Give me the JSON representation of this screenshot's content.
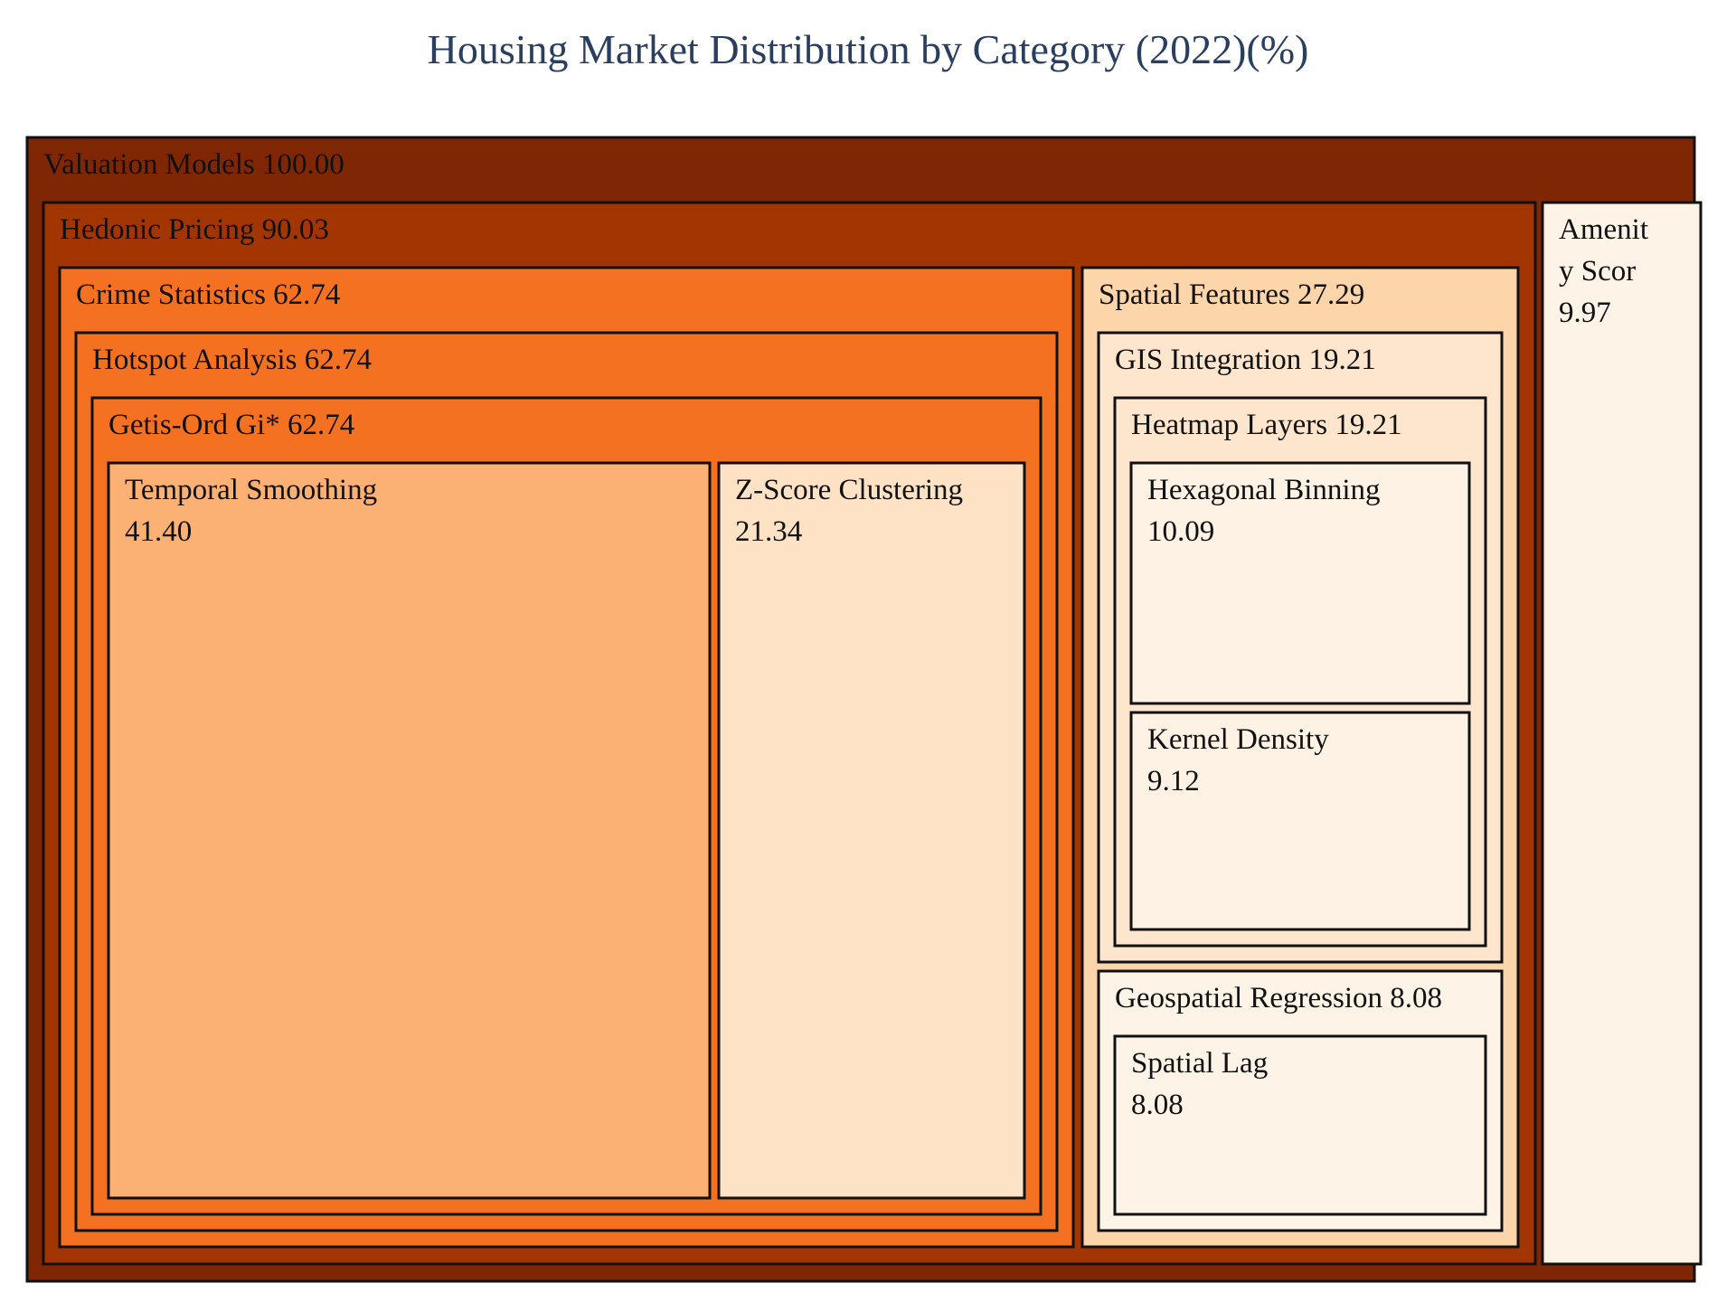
{
  "chart_data": {
    "type": "treemap",
    "title": "Housing Market Distribution by Category (2022)(%)",
    "root": {
      "id": "valuation-models",
      "label": "Valuation Models",
      "value": "100.00",
      "color": "#7f2704",
      "children": [
        {
          "id": "hedonic-pricing",
          "label": "Hedonic Pricing",
          "value": "90.03",
          "color": "#a33503",
          "children": [
            {
              "id": "crime-statistics",
              "label": "Crime Statistics",
              "value": "62.74",
              "color": "#f37121",
              "children": [
                {
                  "id": "hotspot-analysis",
                  "label": "Hotspot Analysis",
                  "value": "62.74",
                  "color": "#f37121",
                  "children": [
                    {
                      "id": "getis-ord",
                      "label": "Getis-Ord Gi*",
                      "value": "62.74",
                      "color": "#f37121",
                      "children": [
                        {
                          "id": "temporal-smoothing",
                          "label": "Temporal Smoothing",
                          "value": "41.40",
                          "color": "#fbb174",
                          "wrap": true
                        },
                        {
                          "id": "z-score-clustering",
                          "label": "Z-Score Clustering",
                          "value": "21.34",
                          "color": "#fde2c6",
                          "wrap": true
                        }
                      ]
                    }
                  ]
                }
              ]
            },
            {
              "id": "spatial-features",
              "label": "Spatial Features",
              "value": "27.29",
              "color": "#fdd5ab",
              "children": [
                {
                  "id": "gis-integration",
                  "label": "GIS Integration",
                  "value": "19.21",
                  "color": "#fee6ce",
                  "children": [
                    {
                      "id": "heatmap-layers",
                      "label": "Heatmap Layers",
                      "value": "19.21",
                      "color": "#fee6ce",
                      "children": [
                        {
                          "id": "hexagonal-binning",
                          "label": "Hexagonal Binning",
                          "value": "10.09",
                          "color": "#fef2e5",
                          "wrap": true
                        },
                        {
                          "id": "kernel-density",
                          "label": "Kernel Density",
                          "value": "9.12",
                          "color": "#fef2e5",
                          "wrap": true
                        }
                      ]
                    }
                  ]
                },
                {
                  "id": "geospatial-regression",
                  "label": "Geospatial Regression",
                  "value": "8.08",
                  "color": "#fef3e7",
                  "children": [
                    {
                      "id": "spatial-lag",
                      "label": "Spatial Lag",
                      "value": "8.08",
                      "color": "#fef3e7",
                      "wrap": true
                    }
                  ]
                }
              ]
            }
          ]
        },
        {
          "id": "amenity-scores",
          "label": "Amenit|y Scor",
          "value": "9.97",
          "color": "#fef3e7",
          "wrap": true
        }
      ]
    }
  }
}
